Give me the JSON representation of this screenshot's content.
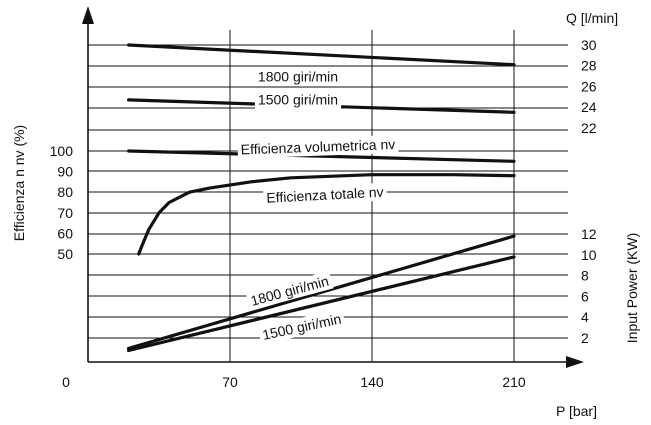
{
  "chart_data": {
    "type": "line",
    "x_axis": {
      "label": "P [bar]",
      "ticks": [
        0,
        70,
        140,
        210
      ],
      "range": [
        0,
        240
      ]
    },
    "left_axis": {
      "label": "Efficienza n nv (%)",
      "ticks": [
        50,
        60,
        70,
        80,
        90,
        100
      ]
    },
    "right_axis_top": {
      "label": "Q [l/min]",
      "ticks": [
        22,
        24,
        26,
        28,
        30
      ]
    },
    "right_axis_bottom": {
      "label": "Input Power (KW)",
      "ticks": [
        2,
        4,
        6,
        8,
        10,
        12
      ]
    },
    "grid": true,
    "series": [
      {
        "name": "1800 giri/min",
        "axis": "flow",
        "unit": "l/min",
        "x": [
          20,
          210
        ],
        "values": [
          30.0,
          28.1
        ]
      },
      {
        "name": "1500 giri/min",
        "axis": "flow",
        "unit": "l/min",
        "x": [
          20,
          210
        ],
        "values": [
          24.7,
          23.5
        ]
      },
      {
        "name": "Efficienza volumetrica nv",
        "axis": "efficiency",
        "unit": "%",
        "x": [
          20,
          210
        ],
        "values": [
          100,
          95
        ]
      },
      {
        "name": "Efficienza totale nv",
        "axis": "efficiency",
        "unit": "%",
        "x": [
          25,
          27,
          30,
          35,
          40,
          50,
          60,
          80,
          100,
          140,
          180,
          210
        ],
        "values": [
          50,
          55,
          62,
          70,
          75,
          80,
          82,
          85,
          87,
          88.5,
          88.5,
          88
        ]
      },
      {
        "name": "1800 giri/min",
        "axis": "power",
        "unit": "KW",
        "x": [
          20,
          210
        ],
        "values": [
          1.0,
          11.8
        ]
      },
      {
        "name": "1500 giri/min",
        "axis": "power",
        "unit": "KW",
        "x": [
          20,
          210
        ],
        "values": [
          0.8,
          9.8
        ]
      }
    ]
  }
}
